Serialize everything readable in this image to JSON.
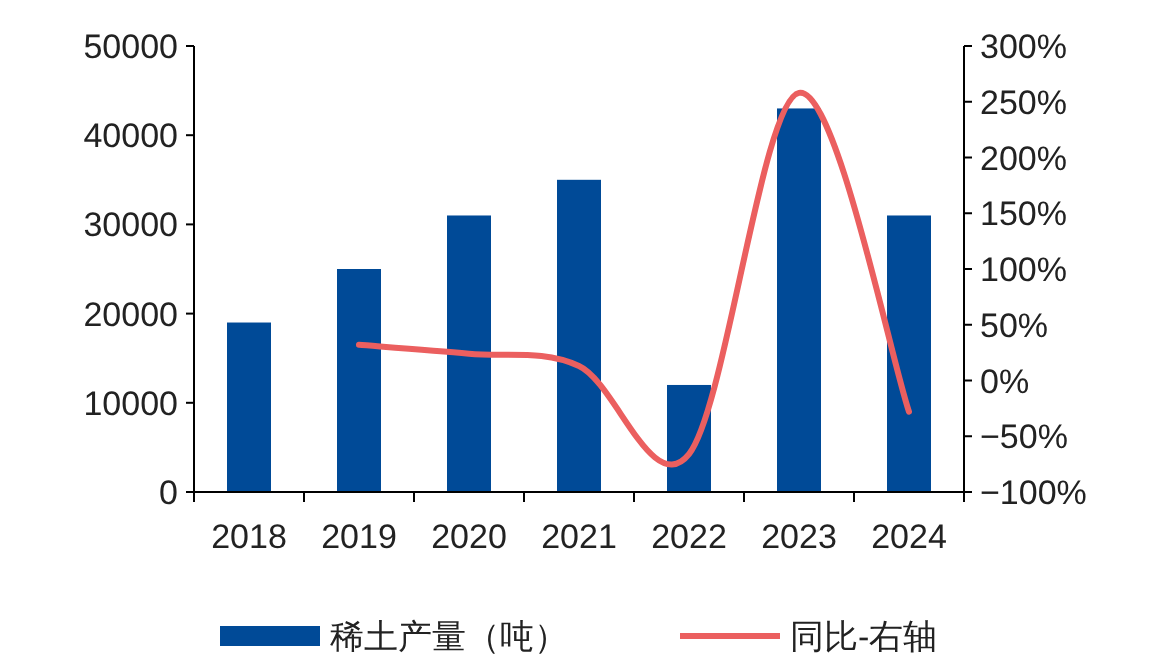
{
  "chart_data": {
    "type": "bar",
    "categories": [
      "2018",
      "2019",
      "2020",
      "2021",
      "2022",
      "2023",
      "2024"
    ],
    "series": [
      {
        "name": "稀土产量（吨）",
        "color": "#004a97",
        "values": [
          19000,
          25000,
          31000,
          35000,
          12000,
          43000,
          31000
        ]
      },
      {
        "name": "同比-右轴",
        "type": "line",
        "axis": "y2",
        "color": "#eb5f5f",
        "values": [
          null,
          32,
          24,
          13,
          -66,
          258,
          -28
        ]
      }
    ],
    "ylim": [
      0,
      50000
    ],
    "yticks": [
      0,
      10000,
      20000,
      30000,
      40000,
      50000
    ],
    "y2lim": [
      -100,
      300
    ],
    "y2ticks": [
      {
        "value": -100,
        "label": "−100%"
      },
      {
        "value": -50,
        "label": "−50%"
      },
      {
        "value": 0,
        "label": "0%"
      },
      {
        "value": 50,
        "label": "50%"
      },
      {
        "value": 100,
        "label": "100%"
      },
      {
        "value": 150,
        "label": "150%"
      },
      {
        "value": 200,
        "label": "200%"
      },
      {
        "value": 250,
        "label": "250%"
      },
      {
        "value": 300,
        "label": "300%"
      }
    ],
    "legend": "bottom",
    "grid": false
  }
}
